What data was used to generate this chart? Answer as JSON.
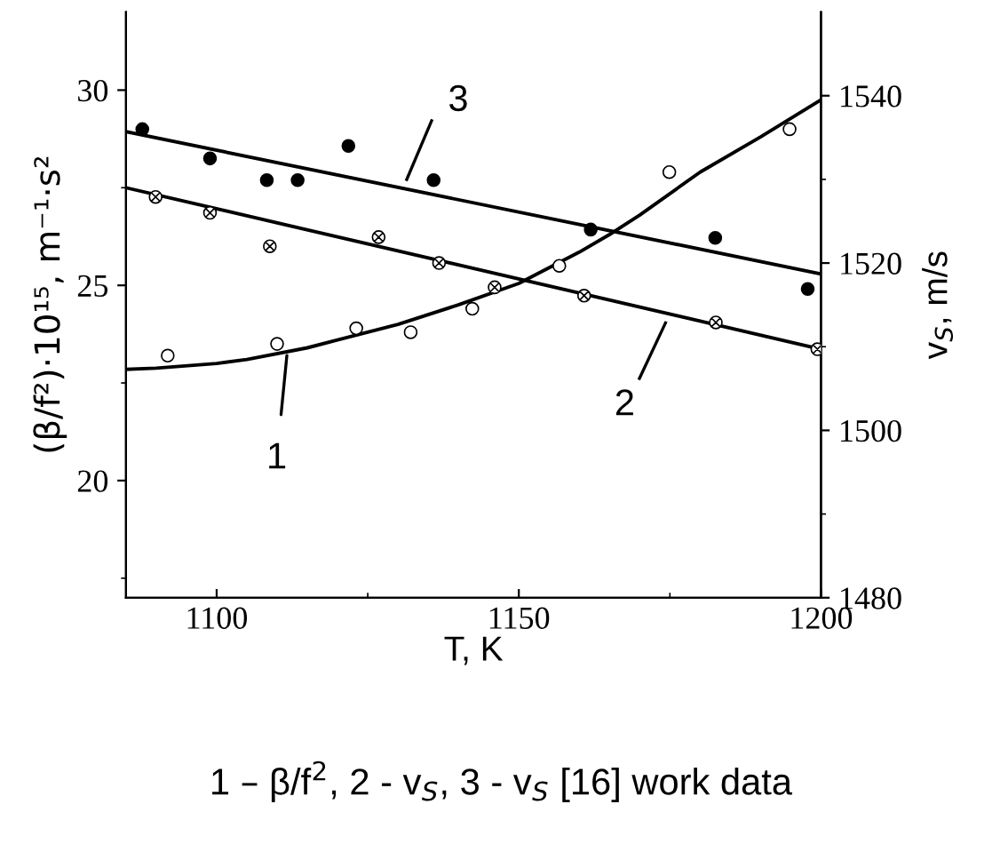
{
  "chart_data": {
    "type": "scatter",
    "xlabel": "T, K",
    "ylabel": "(β/f²)·10¹⁵, m⁻¹·s²",
    "y2label": "v$_{S}$, m/s",
    "xlim": [
      1085,
      1200
    ],
    "xticks": [
      1100,
      1150,
      1200
    ],
    "ylim": [
      17,
      32
    ],
    "yticks": [
      20,
      25,
      30
    ],
    "y2lim": [
      1480,
      1550
    ],
    "y2ticks": [
      1480,
      1500,
      1520,
      1540
    ],
    "grid": false,
    "legend": false,
    "series": [
      {
        "marker": "circle",
        "color": "#ffffff",
        "x": [
          1091.9,
          1110.0,
          1123.1,
          1132.1,
          1142.3,
          1156.7,
          1174.9,
          1194.8
        ],
        "values": [
          23.2,
          23.5,
          23.9,
          23.8,
          24.4,
          25.5,
          27.9,
          29.0
        ]
      },
      {
        "marker": "cross",
        "color": "#ffffff",
        "axis": "y2",
        "x": [
          1089.9,
          1098.9,
          1108.8,
          1126.8,
          1136.8,
          1146.0,
          1160.8,
          1182.6,
          1199.4
        ],
        "values": [
          1527.9,
          1526.0,
          1522.0,
          1523.1,
          1520.0,
          1517.1,
          1516.1,
          1512.9,
          1509.7
        ]
      },
      {
        "marker": "circle",
        "color": "#000000",
        "axis": "y2",
        "x": [
          1087.7,
          1098.9,
          1108.3,
          1113.4,
          1121.8,
          1135.9,
          1161.9,
          1182.5,
          1197.8
        ],
        "values": [
          1536.0,
          1532.5,
          1529.9,
          1529.9,
          1534.0,
          1529.9,
          1524.0,
          1523.0,
          1516.9
        ]
      },
      {
        "type": "line",
        "marker": "none",
        "color": "#000000",
        "x": [
          1085,
          1090,
          1100,
          1105,
          1115,
          1120,
          1130,
          1140,
          1150,
          1160,
          1165,
          1170,
          1180,
          1190,
          1200
        ],
        "values": [
          22.85,
          22.88,
          23.0,
          23.1,
          23.4,
          23.6,
          24.0,
          24.5,
          25.05,
          25.85,
          26.3,
          26.8,
          27.9,
          28.8,
          29.75
        ]
      },
      {
        "type": "line",
        "marker": "none",
        "color": "#000000",
        "axis": "y2",
        "x": [
          1085,
          1200
        ],
        "values": [
          1529.0,
          1509.7
        ]
      },
      {
        "type": "line",
        "marker": "none",
        "color": "#000000",
        "axis": "y2",
        "x": [
          1085,
          1200
        ],
        "values": [
          1535.7,
          1518.7
        ]
      }
    ],
    "annotations": [
      {
        "text": "1",
        "x": 1111.7,
        "y": 23.33
      },
      "2",
      "3",
      "1 – β/f$^{2}$, 2 - v$_{S}$, 3 - v$_{S}$ [16] work data"
    ]
  }
}
